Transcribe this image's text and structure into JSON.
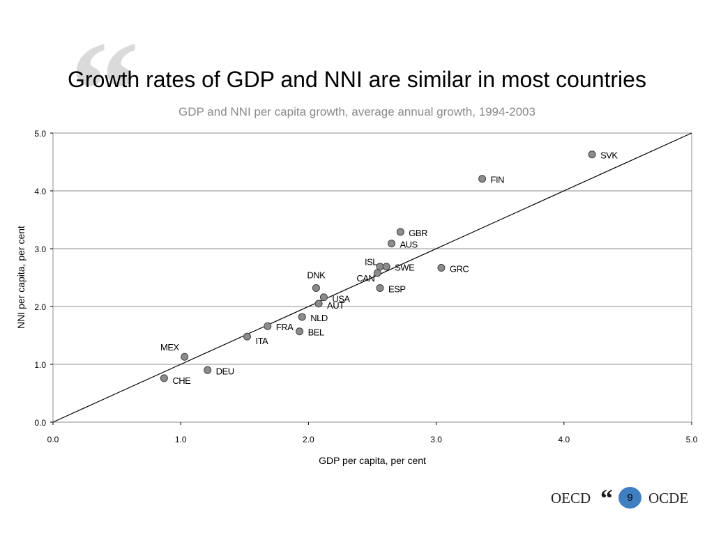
{
  "slide": {
    "title": "Growth rates of GDP and NNI are similar in most countries",
    "page_number": "9"
  },
  "footer": {
    "logo_left": "OECD",
    "logo_right": "OCDE"
  },
  "colors": {
    "marker_fill": "#8c8c8c",
    "marker_stroke": "#404040",
    "gridline": "#8c8c8c",
    "page_badge": "#3f7fc1"
  },
  "chart_data": {
    "type": "scatter",
    "title": "GDP and NNI per capita growth, average annual growth, 1994-2003",
    "xlabel": "GDP per capita, per cent",
    "ylabel": "NNI per capita, per cent",
    "xlim": [
      0,
      5
    ],
    "ylim": [
      0,
      5
    ],
    "xticks": [
      "0.0",
      "1.0",
      "2.0",
      "3.0",
      "4.0",
      "5.0"
    ],
    "yticks": [
      "0.0",
      "1.0",
      "2.0",
      "3.0",
      "4.0",
      "5.0"
    ],
    "grid": "horizontal",
    "reference_line": "45-degree line (y = x)",
    "points": [
      {
        "label": "SVK",
        "x": 4.22,
        "y": 4.63
      },
      {
        "label": "FIN",
        "x": 3.36,
        "y": 4.21
      },
      {
        "label": "GBR",
        "x": 2.72,
        "y": 3.29
      },
      {
        "label": "AUS",
        "x": 2.65,
        "y": 3.09
      },
      {
        "label": "ISL",
        "x": 2.56,
        "y": 2.69
      },
      {
        "label": "SWE",
        "x": 2.61,
        "y": 2.69
      },
      {
        "label": "CAN",
        "x": 2.54,
        "y": 2.58
      },
      {
        "label": "GRC",
        "x": 3.04,
        "y": 2.67
      },
      {
        "label": "ESP",
        "x": 2.56,
        "y": 2.32
      },
      {
        "label": "DNK",
        "x": 2.06,
        "y": 2.32
      },
      {
        "label": "USA",
        "x": 2.12,
        "y": 2.16
      },
      {
        "label": "AUT",
        "x": 2.08,
        "y": 2.05
      },
      {
        "label": "NLD",
        "x": 1.95,
        "y": 1.82
      },
      {
        "label": "FRA",
        "x": 1.68,
        "y": 1.66
      },
      {
        "label": "BEL",
        "x": 1.93,
        "y": 1.57
      },
      {
        "label": "ITA",
        "x": 1.52,
        "y": 1.48
      },
      {
        "label": "MEX",
        "x": 1.03,
        "y": 1.13
      },
      {
        "label": "DEU",
        "x": 1.21,
        "y": 0.9
      },
      {
        "label": "CHE",
        "x": 0.87,
        "y": 0.76
      }
    ]
  }
}
